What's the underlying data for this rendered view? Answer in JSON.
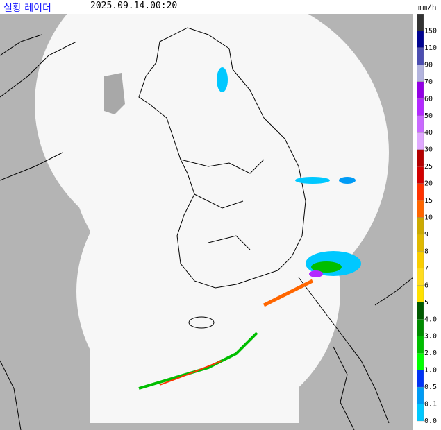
{
  "header": {
    "title": "실황 레이더",
    "time": "2025.09.14.00:20",
    "unit": "mm/h"
  },
  "legend": [
    {
      "label": "150",
      "color": "#333333"
    },
    {
      "label": "110",
      "color": "#000390"
    },
    {
      "label": "90",
      "color": "#4c4eb1"
    },
    {
      "label": "70",
      "color": "#b3b4de"
    },
    {
      "label": "60",
      "color": "#9300e4"
    },
    {
      "label": "50",
      "color": "#b329ff"
    },
    {
      "label": "40",
      "color": "#c969ff"
    },
    {
      "label": "30",
      "color": "#e0a9ff"
    },
    {
      "label": "25",
      "color": "#b40000"
    },
    {
      "label": "20",
      "color": "#d20000"
    },
    {
      "label": "15",
      "color": "#ff3200"
    },
    {
      "label": "10",
      "color": "#ff6600"
    },
    {
      "label": "9",
      "color": "#ccaa00"
    },
    {
      "label": "8",
      "color": "#e0b900"
    },
    {
      "label": "7",
      "color": "#f9cd00"
    },
    {
      "label": "6",
      "color": "#ffdc1f"
    },
    {
      "label": "5",
      "color": "#ffe100"
    },
    {
      "label": "4.0",
      "color": "#005a00"
    },
    {
      "label": "3.0",
      "color": "#008c00"
    },
    {
      "label": "2.0",
      "color": "#00be00"
    },
    {
      "label": "1.0",
      "color": "#00ff00"
    },
    {
      "label": "0.5",
      "color": "#0033f5"
    },
    {
      "label": "0.1",
      "color": "#009bf5"
    },
    {
      "label": "0.0",
      "color": "#00c8ff"
    }
  ]
}
